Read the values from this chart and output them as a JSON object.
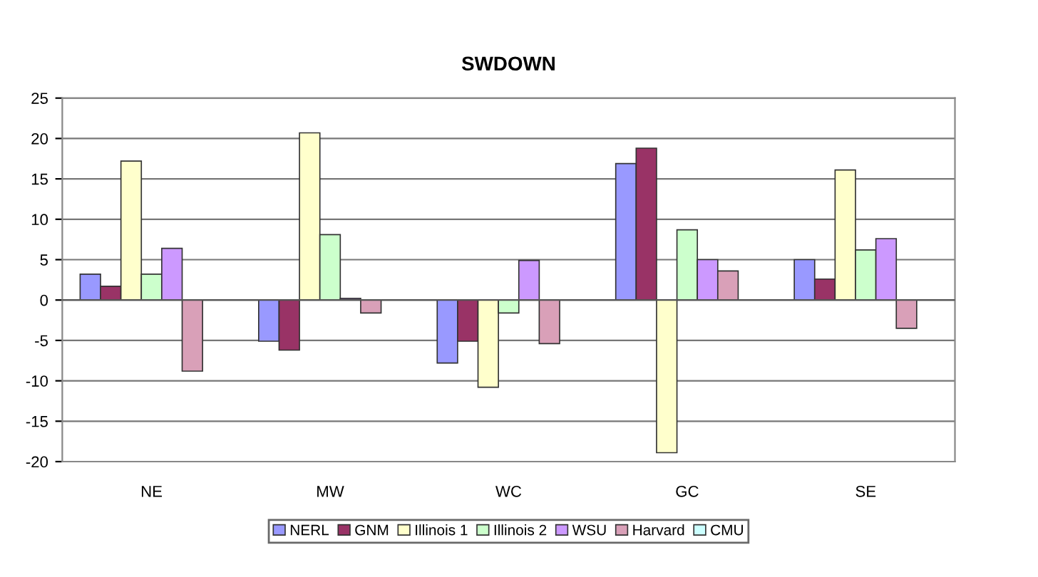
{
  "chart_data": {
    "type": "bar",
    "title": "SWDOWN",
    "categories": [
      "NE",
      "MW",
      "WC",
      "GC",
      "SE"
    ],
    "series": [
      {
        "name": "NERL",
        "color": "#9999ff",
        "values": [
          3.2,
          -5.1,
          -7.8,
          16.9,
          5.0
        ]
      },
      {
        "name": "GNM",
        "color": "#993366",
        "values": [
          1.7,
          -6.2,
          -5.1,
          18.8,
          2.6
        ]
      },
      {
        "name": "Illinois 1",
        "color": "#ffffcc",
        "values": [
          17.2,
          20.7,
          -10.8,
          -18.9,
          16.1
        ]
      },
      {
        "name": "Illinois 2",
        "color": "#ccffcc",
        "values": [
          3.2,
          8.1,
          -1.6,
          8.7,
          6.2
        ]
      },
      {
        "name": "WSU",
        "color": "#cc99ff",
        "values": [
          6.4,
          0.2,
          4.9,
          5.0,
          7.6
        ]
      },
      {
        "name": "Harvard",
        "color": "#d9a0b8",
        "values": [
          -8.8,
          -1.6,
          -5.4,
          3.6,
          -3.5
        ]
      },
      {
        "name": "CMU",
        "color": "#ccffff",
        "values": [
          null,
          null,
          null,
          null,
          null
        ]
      }
    ],
    "ylim": [
      -20,
      25
    ],
    "yticks": [
      -20,
      -15,
      -10,
      -5,
      0,
      5,
      10,
      15,
      20,
      25
    ],
    "grid": "y",
    "legend": "bottom"
  }
}
